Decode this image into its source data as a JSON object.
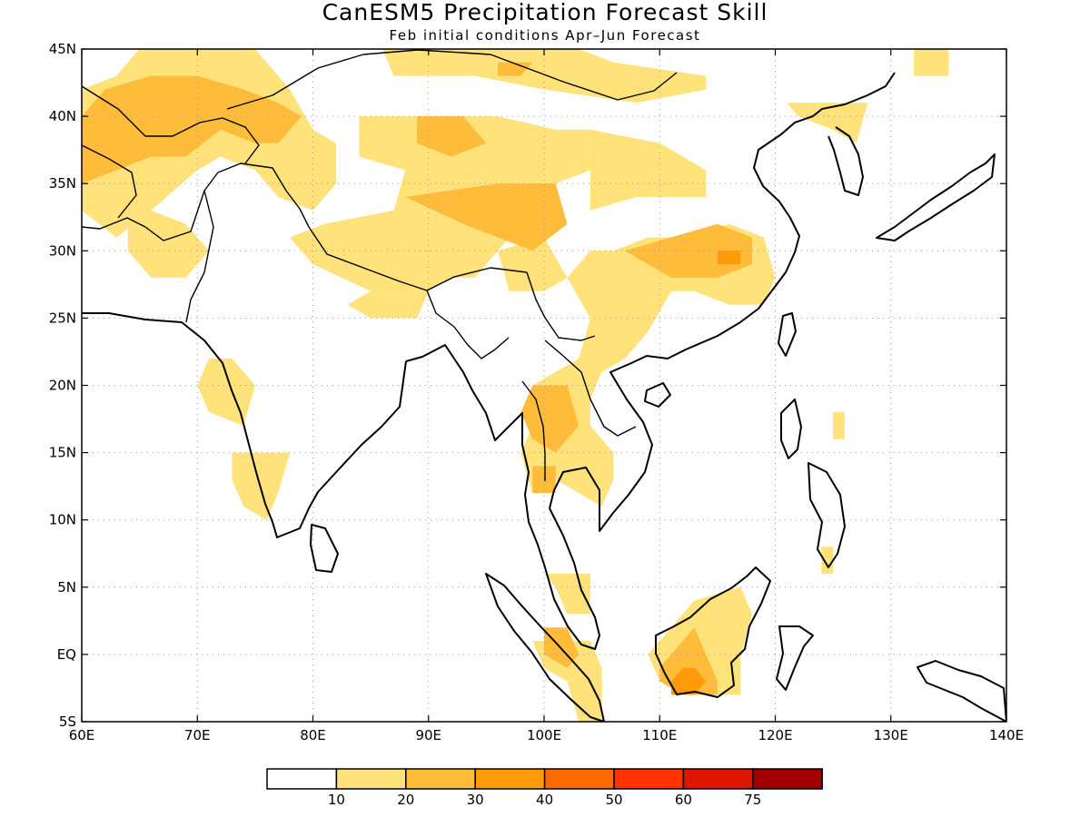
{
  "title": "CanESM5 Precipitation Forecast Skill",
  "subtitle": "Feb initial conditions  Apr–Jun Forecast",
  "map": {
    "lon_range": [
      60,
      140
    ],
    "lat_range": [
      -5,
      45
    ],
    "lon_ticks": [
      {
        "v": 60,
        "label": "60E"
      },
      {
        "v": 70,
        "label": "70E"
      },
      {
        "v": 80,
        "label": "80E"
      },
      {
        "v": 90,
        "label": "90E"
      },
      {
        "v": 100,
        "label": "100E"
      },
      {
        "v": 110,
        "label": "110E"
      },
      {
        "v": 120,
        "label": "120E"
      },
      {
        "v": 130,
        "label": "130E"
      },
      {
        "v": 140,
        "label": "140E"
      }
    ],
    "lat_ticks": [
      {
        "v": 45,
        "label": "45N"
      },
      {
        "v": 40,
        "label": "40N"
      },
      {
        "v": 35,
        "label": "35N"
      },
      {
        "v": 30,
        "label": "30N"
      },
      {
        "v": 25,
        "label": "25N"
      },
      {
        "v": 20,
        "label": "20N"
      },
      {
        "v": 15,
        "label": "15N"
      },
      {
        "v": 10,
        "label": "10N"
      },
      {
        "v": 5,
        "label": "5N"
      },
      {
        "v": 0,
        "label": "EQ"
      },
      {
        "v": -5,
        "label": "5S"
      }
    ],
    "grid": "dotted"
  },
  "legend": {
    "colors": [
      "#ffffff",
      "#ffe27a",
      "#ffbb3a",
      "#ff9a0a",
      "#ff6a00",
      "#ff3300",
      "#e01500",
      "#a00000"
    ],
    "labels": [
      "10",
      "20",
      "30",
      "40",
      "50",
      "60",
      "75"
    ]
  },
  "skill_regions": [
    {
      "level": 1,
      "poly": [
        [
          65,
          45
        ],
        [
          75,
          45
        ],
        [
          78,
          42
        ],
        [
          80,
          39
        ],
        [
          82,
          38
        ],
        [
          82,
          35
        ],
        [
          80,
          33
        ],
        [
          77,
          34
        ],
        [
          75,
          36
        ],
        [
          72,
          37
        ],
        [
          70,
          36
        ],
        [
          66,
          33
        ],
        [
          63,
          31
        ],
        [
          60,
          33
        ],
        [
          60,
          42
        ],
        [
          63,
          43
        ]
      ]
    },
    {
      "level": 1,
      "poly": [
        [
          86,
          45
        ],
        [
          103,
          45
        ],
        [
          106,
          44
        ],
        [
          114,
          43
        ],
        [
          114,
          42
        ],
        [
          108,
          41
        ],
        [
          100,
          42
        ],
        [
          94,
          43
        ],
        [
          87,
          43
        ]
      ]
    },
    {
      "level": 1,
      "poly": [
        [
          121,
          41
        ],
        [
          128,
          41
        ],
        [
          127,
          38
        ],
        [
          125,
          39
        ],
        [
          122,
          40
        ]
      ]
    },
    {
      "level": 1,
      "poly": [
        [
          132,
          45
        ],
        [
          135,
          45
        ],
        [
          135,
          43
        ],
        [
          132,
          43
        ]
      ]
    },
    {
      "level": 1,
      "poly": [
        [
          66,
          33
        ],
        [
          69,
          32
        ],
        [
          71,
          30
        ],
        [
          69,
          28
        ],
        [
          66,
          28
        ],
        [
          64,
          30
        ],
        [
          64,
          32
        ]
      ]
    },
    {
      "level": 1,
      "poly": [
        [
          84,
          40
        ],
        [
          96,
          40
        ],
        [
          101,
          39
        ],
        [
          104,
          39
        ],
        [
          104,
          36
        ],
        [
          101,
          35
        ],
        [
          99,
          33
        ],
        [
          96,
          30
        ],
        [
          94,
          28
        ],
        [
          92,
          28
        ],
        [
          90,
          27
        ],
        [
          85,
          27
        ],
        [
          80,
          29
        ],
        [
          78,
          31
        ],
        [
          81,
          32
        ],
        [
          87,
          33
        ],
        [
          88,
          36
        ],
        [
          84,
          37
        ]
      ]
    },
    {
      "level": 1,
      "poly": [
        [
          104,
          39
        ],
        [
          110,
          38
        ],
        [
          114,
          36
        ],
        [
          114,
          34
        ],
        [
          108,
          34
        ],
        [
          104,
          33
        ]
      ]
    },
    {
      "level": 1,
      "poly": [
        [
          96,
          30
        ],
        [
          100,
          31
        ],
        [
          102,
          28
        ],
        [
          104,
          25
        ],
        [
          103,
          22
        ],
        [
          101,
          21
        ],
        [
          99,
          20
        ],
        [
          99,
          17
        ],
        [
          98,
          15
        ],
        [
          99,
          12
        ],
        [
          101,
          13
        ],
        [
          103,
          12
        ],
        [
          105,
          11
        ],
        [
          106,
          13
        ],
        [
          106,
          15
        ],
        [
          104,
          17
        ],
        [
          104,
          19
        ],
        [
          105,
          21
        ],
        [
          107,
          22
        ],
        [
          109,
          24
        ],
        [
          111,
          27
        ],
        [
          113,
          27
        ],
        [
          116,
          26
        ],
        [
          119,
          26
        ],
        [
          120,
          28
        ],
        [
          119,
          31
        ],
        [
          116,
          32
        ],
        [
          113,
          31
        ],
        [
          109,
          31
        ],
        [
          106,
          30
        ],
        [
          104,
          30
        ],
        [
          102,
          28
        ],
        [
          100,
          27
        ],
        [
          97,
          27
        ]
      ]
    },
    {
      "level": 1,
      "poly": [
        [
          85,
          25
        ],
        [
          89,
          25
        ],
        [
          90,
          27
        ],
        [
          85,
          27
        ],
        [
          83,
          26
        ]
      ]
    },
    {
      "level": 1,
      "poly": [
        [
          71,
          22
        ],
        [
          73,
          22
        ],
        [
          75,
          20
        ],
        [
          74,
          17
        ],
        [
          71,
          18
        ],
        [
          70,
          20
        ]
      ]
    },
    {
      "level": 1,
      "poly": [
        [
          73,
          15
        ],
        [
          78,
          15
        ],
        [
          77,
          12
        ],
        [
          76,
          10
        ],
        [
          74,
          11
        ],
        [
          73,
          13
        ]
      ]
    },
    {
      "level": 1,
      "poly": [
        [
          100,
          6
        ],
        [
          104,
          6
        ],
        [
          104,
          3
        ],
        [
          102,
          3
        ],
        [
          101,
          5
        ]
      ]
    },
    {
      "level": 1,
      "poly": [
        [
          99,
          1
        ],
        [
          104,
          1
        ],
        [
          105,
          -1
        ],
        [
          105,
          -5
        ],
        [
          103,
          -5
        ],
        [
          102,
          -2
        ],
        [
          100,
          -1
        ]
      ]
    },
    {
      "level": 1,
      "poly": [
        [
          109,
          0
        ],
        [
          111,
          2
        ],
        [
          113,
          4
        ],
        [
          117,
          5
        ],
        [
          118,
          3
        ],
        [
          117,
          0
        ],
        [
          117,
          -3
        ],
        [
          115,
          -3
        ],
        [
          112,
          -3
        ],
        [
          110,
          -2
        ]
      ]
    },
    {
      "level": 1,
      "poly": [
        [
          125,
          18
        ],
        [
          126,
          18
        ],
        [
          126,
          16
        ],
        [
          125,
          16
        ]
      ]
    },
    {
      "level": 1,
      "poly": [
        [
          124,
          8
        ],
        [
          125,
          8
        ],
        [
          125,
          6
        ],
        [
          124,
          6
        ]
      ]
    },
    {
      "level": 2,
      "poly": [
        [
          62,
          42
        ],
        [
          66,
          43
        ],
        [
          70,
          43
        ],
        [
          74,
          42
        ],
        [
          77,
          41
        ],
        [
          79,
          40
        ],
        [
          77,
          38
        ],
        [
          75,
          38
        ],
        [
          72,
          39
        ],
        [
          69,
          37
        ],
        [
          66,
          37
        ],
        [
          63,
          36
        ],
        [
          60,
          35
        ],
        [
          60,
          40
        ]
      ]
    },
    {
      "level": 2,
      "poly": [
        [
          89,
          40
        ],
        [
          93,
          40
        ],
        [
          95,
          38
        ],
        [
          92,
          37
        ],
        [
          89,
          38
        ]
      ]
    },
    {
      "level": 2,
      "poly": [
        [
          96,
          44
        ],
        [
          99,
          44
        ],
        [
          98,
          43
        ],
        [
          96,
          43
        ]
      ]
    },
    {
      "level": 2,
      "poly": [
        [
          88,
          34
        ],
        [
          96,
          35
        ],
        [
          101,
          35
        ],
        [
          102,
          32
        ],
        [
          99,
          30
        ],
        [
          96,
          31
        ],
        [
          93,
          32
        ]
      ]
    },
    {
      "level": 2,
      "poly": [
        [
          107,
          30
        ],
        [
          111,
          31
        ],
        [
          115,
          32
        ],
        [
          118,
          31
        ],
        [
          118,
          29
        ],
        [
          115,
          28
        ],
        [
          111,
          28
        ]
      ]
    },
    {
      "level": 2,
      "poly": [
        [
          99,
          20
        ],
        [
          102,
          20
        ],
        [
          103,
          17
        ],
        [
          101,
          15
        ],
        [
          99,
          16
        ],
        [
          98,
          18
        ]
      ]
    },
    {
      "level": 2,
      "poly": [
        [
          99,
          14
        ],
        [
          101,
          14
        ],
        [
          101,
          12
        ],
        [
          99,
          12
        ]
      ]
    },
    {
      "level": 2,
      "poly": [
        [
          100,
          2
        ],
        [
          102,
          2
        ],
        [
          103,
          0
        ],
        [
          102,
          -1
        ],
        [
          100,
          0
        ]
      ]
    },
    {
      "level": 2,
      "poly": [
        [
          110,
          -1
        ],
        [
          112,
          1
        ],
        [
          113,
          2
        ],
        [
          114,
          0
        ],
        [
          115,
          -2
        ],
        [
          115,
          -3
        ],
        [
          112,
          -3
        ],
        [
          110,
          -2
        ]
      ]
    },
    {
      "level": 3,
      "poly": [
        [
          115,
          30
        ],
        [
          117,
          30
        ],
        [
          117,
          29
        ],
        [
          115,
          29
        ]
      ]
    },
    {
      "level": 3,
      "poly": [
        [
          112,
          -1
        ],
        [
          113,
          -1
        ],
        [
          114,
          -2
        ],
        [
          113,
          -3
        ],
        [
          111,
          -3
        ],
        [
          111,
          -2
        ]
      ]
    }
  ]
}
